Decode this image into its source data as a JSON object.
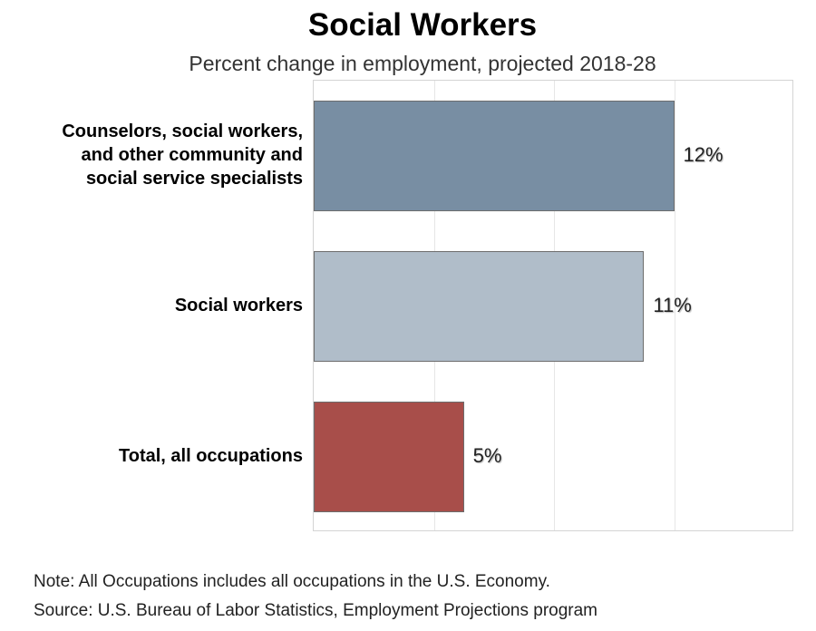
{
  "chart_data": {
    "type": "bar",
    "orientation": "horizontal",
    "title": "Social Workers",
    "subtitle": "Percent change in employment, projected 2018-28",
    "categories": [
      "Counselors, social workers,\nand other community and\nsocial service specialists",
      "Social workers",
      "Total, all occupations"
    ],
    "values": [
      12,
      11,
      5
    ],
    "value_labels": [
      "12%",
      "11%",
      "5%"
    ],
    "colors": [
      "#788ea3",
      "#b0bdc9",
      "#a84e4a"
    ],
    "xlim": [
      0,
      16
    ],
    "grid": true
  },
  "notes": {
    "note": "Note: All Occupations includes all occupations in the U.S. Economy.",
    "source": "Source: U.S. Bureau of Labor Statistics, Employment Projections program"
  }
}
